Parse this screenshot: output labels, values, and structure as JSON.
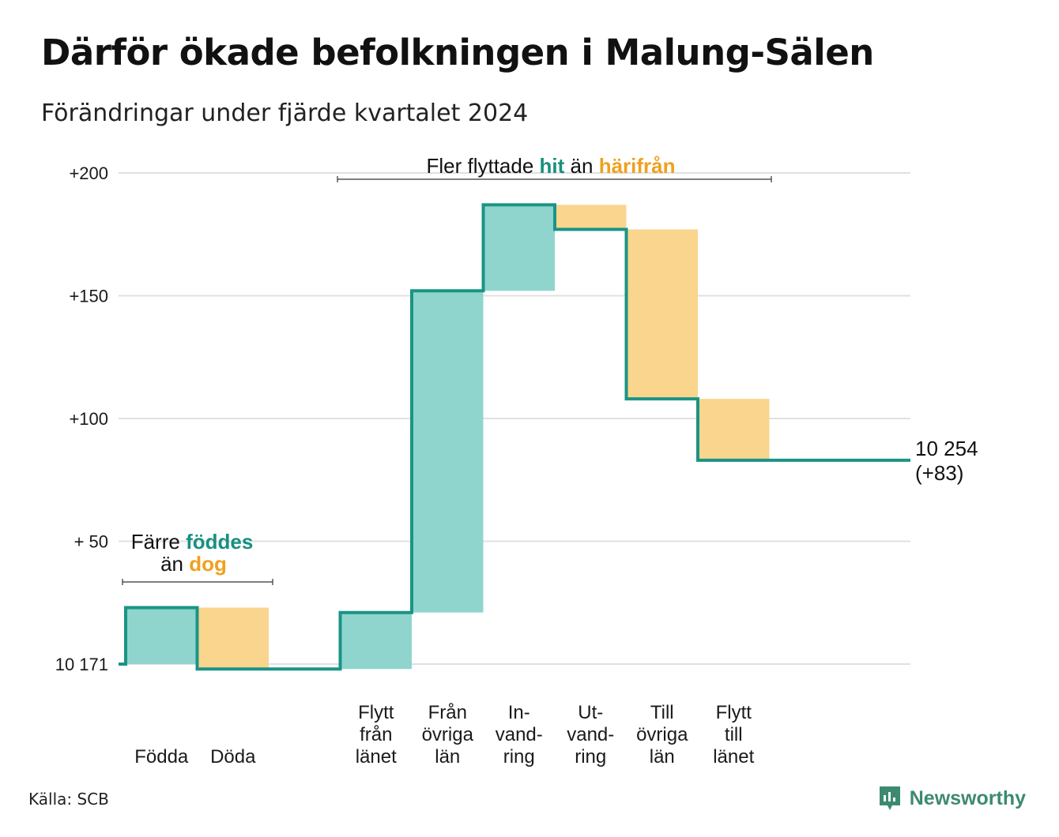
{
  "title": "Därför ökade befolkningen i Malung-Sälen",
  "subtitle": "Förändringar under fjärde kvartalet 2024",
  "source": "Källa: SCB",
  "brand": "Newsworthy",
  "colors": {
    "increase": "#8fd5cd",
    "decrease": "#f9d58e",
    "line": "#1a9485",
    "teal_text": "#17907f",
    "orange_text": "#f0a01e",
    "grid": "#e0e0e0",
    "brand": "#3d8a70"
  },
  "annotations": {
    "births": {
      "line1_prefix": "Färre",
      "line1_highlight": "föddes",
      "line2_prefix": "än",
      "line2_highlight": "dog"
    },
    "moves": {
      "prefix": "Fler flyttade",
      "highlight1": "hit",
      "middle": "än",
      "highlight2": "härifrån"
    }
  },
  "end_label": {
    "line1": "10 254",
    "line2": "(+83)"
  },
  "chart_data": {
    "type": "waterfall",
    "baseline": 10171,
    "baseline_label": "10 171",
    "final_value": 10254,
    "ylim": [
      0,
      200
    ],
    "yticks": [
      {
        "value": 0,
        "label": "10 171"
      },
      {
        "value": 50,
        "label": "+ 50"
      },
      {
        "value": 100,
        "label": "+100"
      },
      {
        "value": 150,
        "label": "+150"
      },
      {
        "value": 200,
        "label": "+200"
      }
    ],
    "steps": [
      {
        "category": [
          "Födda"
        ],
        "change": 23
      },
      {
        "category": [
          "Döda"
        ],
        "change": -25
      },
      {
        "category": [],
        "change": 0
      },
      {
        "category": [
          "Flytt",
          "från",
          "länet"
        ],
        "change": 23
      },
      {
        "category": [
          "Från",
          "övriga",
          "län"
        ],
        "change": 131
      },
      {
        "category": [
          "In-",
          "vand-",
          "ring"
        ],
        "change": 35
      },
      {
        "category": [
          "Ut-",
          "vand-",
          "ring"
        ],
        "change": -10
      },
      {
        "category": [
          "Till",
          "övriga",
          "län"
        ],
        "change": -69
      },
      {
        "category": [
          "Flytt",
          "till",
          "länet"
        ],
        "change": -25
      }
    ],
    "grid": true
  }
}
